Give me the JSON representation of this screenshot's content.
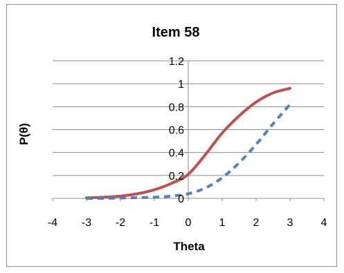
{
  "chart_data": {
    "type": "line",
    "title": "Item 58",
    "xlabel": "Theta",
    "ylabel": "P(θ)",
    "xlim": [
      -4,
      4
    ],
    "ylim": [
      0,
      1.2
    ],
    "x_ticks": [
      "-4",
      "-3",
      "-2",
      "-1",
      "0",
      "1",
      "2",
      "3",
      "4"
    ],
    "y_ticks": [
      "0",
      "0.2",
      "0.4",
      "0.6",
      "0.8",
      "1",
      "1.2"
    ],
    "grid": true,
    "legend": "none",
    "series": [
      {
        "color": "#c0504d",
        "style": "solid",
        "x": [
          -3,
          -2.5,
          -2,
          -1.5,
          -1,
          -0.5,
          0,
          0.5,
          1,
          1.5,
          2,
          2.5,
          3
        ],
        "y": [
          0.005,
          0.01,
          0.02,
          0.04,
          0.075,
          0.13,
          0.21,
          0.38,
          0.57,
          0.72,
          0.84,
          0.92,
          0.96
        ]
      },
      {
        "color": "#4f81bd",
        "style": "dashed",
        "x": [
          -3,
          -2.5,
          -2,
          -1.5,
          -1,
          -0.5,
          0,
          0.5,
          1,
          1.5,
          2,
          2.5,
          3
        ],
        "y": [
          0.0,
          0.0,
          0.003,
          0.006,
          0.01,
          0.02,
          0.04,
          0.09,
          0.18,
          0.31,
          0.47,
          0.65,
          0.82
        ]
      }
    ]
  }
}
